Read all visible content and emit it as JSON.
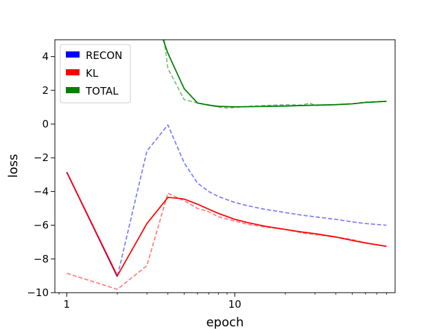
{
  "chart_data": {
    "type": "line",
    "xlabel": "epoch",
    "ylabel": "loss",
    "xscale": "log",
    "xlim": [
      0.85,
      90
    ],
    "ylim": [
      -10,
      5
    ],
    "xticks_major": [
      1,
      10
    ],
    "xtick_labels": [
      "1",
      "10"
    ],
    "yticks": [
      -10,
      -8,
      -6,
      -4,
      -2,
      0,
      2,
      4
    ],
    "ytick_labels": [
      "−10",
      "−8",
      "−6",
      "−4",
      "−2",
      "0",
      "2",
      "4"
    ],
    "grid": false,
    "legend": {
      "placement": "top-left",
      "entries": [
        {
          "label": "RECON",
          "color": "#0000ff"
        },
        {
          "label": "KL",
          "color": "#ff0000"
        },
        {
          "label": "TOTAL",
          "color": "#008000"
        }
      ]
    },
    "series": [
      {
        "name": "RECON",
        "color": "#0000ff",
        "style": "dashed",
        "alpha": 0.5,
        "points": [
          [
            1,
            -2.85
          ],
          [
            2,
            -9.05
          ],
          [
            3,
            -1.6
          ],
          [
            4,
            -0.05
          ],
          [
            5,
            -2.3
          ],
          [
            6,
            -3.5
          ],
          [
            7,
            -4.0
          ],
          [
            8,
            -4.3
          ],
          [
            10,
            -4.65
          ],
          [
            12,
            -4.85
          ],
          [
            15,
            -5.05
          ],
          [
            20,
            -5.25
          ],
          [
            25,
            -5.4
          ],
          [
            30,
            -5.5
          ],
          [
            40,
            -5.65
          ],
          [
            50,
            -5.8
          ],
          [
            60,
            -5.9
          ],
          [
            80,
            -6.0
          ]
        ]
      },
      {
        "name": "KL",
        "color": "#ff0000",
        "style": "dashed",
        "alpha": 0.5,
        "points": [
          [
            1,
            -8.85
          ],
          [
            2,
            -9.8
          ],
          [
            3,
            -8.4
          ],
          [
            4,
            -4.1
          ],
          [
            5,
            -4.55
          ],
          [
            6,
            -5.0
          ],
          [
            7,
            -5.2
          ],
          [
            8,
            -5.5
          ],
          [
            10,
            -5.75
          ],
          [
            12,
            -5.95
          ],
          [
            15,
            -6.1
          ],
          [
            20,
            -6.25
          ],
          [
            25,
            -6.45
          ],
          [
            30,
            -6.55
          ],
          [
            40,
            -6.7
          ],
          [
            50,
            -6.85
          ],
          [
            60,
            -7.05
          ],
          [
            80,
            -7.25
          ]
        ]
      },
      {
        "name": "TOTAL",
        "color": "#008000",
        "style": "dashed",
        "alpha": 0.5,
        "points": [
          [
            3.8,
            5.0
          ],
          [
            4,
            3.3
          ],
          [
            5,
            1.45
          ],
          [
            6,
            1.25
          ],
          [
            7,
            1.15
          ],
          [
            8,
            1.0
          ],
          [
            9,
            0.95
          ],
          [
            10,
            0.98
          ],
          [
            12,
            1.05
          ],
          [
            15,
            1.1
          ],
          [
            20,
            1.15
          ],
          [
            25,
            1.12
          ],
          [
            28,
            1.25
          ],
          [
            30,
            1.1
          ],
          [
            40,
            1.15
          ],
          [
            50,
            1.2
          ],
          [
            60,
            1.3
          ],
          [
            80,
            1.35
          ]
        ]
      },
      {
        "name": "RECON_smooth",
        "color": "#0000ff",
        "style": "solid",
        "alpha": 1,
        "points": [
          [
            1,
            -2.85
          ],
          [
            2,
            -9.05
          ]
        ]
      },
      {
        "name": "KL_smooth",
        "color": "#ff0000",
        "style": "solid",
        "alpha": 1,
        "points": [
          [
            1,
            -2.85
          ],
          [
            2,
            -9.0
          ],
          [
            3,
            -5.9
          ],
          [
            4,
            -4.35
          ],
          [
            4.6,
            -4.4
          ],
          [
            5,
            -4.45
          ],
          [
            6,
            -4.75
          ],
          [
            7,
            -5.05
          ],
          [
            8,
            -5.3
          ],
          [
            10,
            -5.65
          ],
          [
            12,
            -5.85
          ],
          [
            15,
            -6.05
          ],
          [
            20,
            -6.25
          ],
          [
            25,
            -6.4
          ],
          [
            30,
            -6.5
          ],
          [
            40,
            -6.7
          ],
          [
            50,
            -6.9
          ],
          [
            60,
            -7.05
          ],
          [
            80,
            -7.25
          ]
        ]
      },
      {
        "name": "TOTAL_smooth",
        "color": "#008000",
        "style": "solid",
        "alpha": 1,
        "points": [
          [
            3.75,
            5.0
          ],
          [
            4,
            4.2
          ],
          [
            5,
            2.1
          ],
          [
            6,
            1.25
          ],
          [
            7,
            1.12
          ],
          [
            8,
            1.05
          ],
          [
            10,
            1.02
          ],
          [
            12,
            1.03
          ],
          [
            15,
            1.05
          ],
          [
            20,
            1.07
          ],
          [
            25,
            1.1
          ],
          [
            30,
            1.12
          ],
          [
            40,
            1.15
          ],
          [
            50,
            1.2
          ],
          [
            60,
            1.28
          ],
          [
            80,
            1.35
          ]
        ]
      }
    ]
  }
}
